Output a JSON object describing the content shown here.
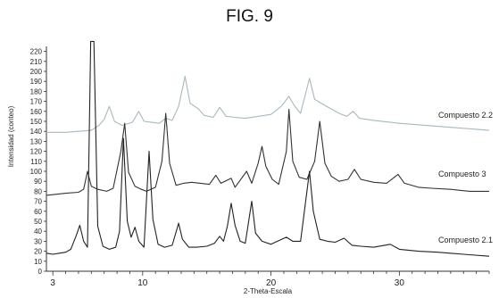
{
  "figure": {
    "title": "FIG. 9"
  },
  "chart_data": {
    "type": "line",
    "xlabel": "2-Theta-Escala",
    "ylabel": "Intensidad (conteo)",
    "xlim": [
      2.5,
      37
    ],
    "ylim": [
      0,
      225
    ],
    "xticks": [
      3,
      10,
      20,
      30
    ],
    "yticks": [
      0,
      10,
      20,
      30,
      40,
      50,
      60,
      70,
      80,
      90,
      100,
      110,
      120,
      130,
      140,
      150,
      160,
      170,
      180,
      190,
      200,
      210,
      220
    ],
    "grid": false,
    "legend": "none",
    "series": [
      {
        "name": "Compuesto 2.2",
        "color": "#a8b8c0",
        "points": [
          [
            2.5,
            139
          ],
          [
            4,
            139
          ],
          [
            5,
            140
          ],
          [
            6,
            141
          ],
          [
            6.6,
            146
          ],
          [
            7,
            152
          ],
          [
            7.4,
            165
          ],
          [
            7.8,
            150
          ],
          [
            8.4,
            146
          ],
          [
            9.2,
            149
          ],
          [
            9.7,
            160
          ],
          [
            10.1,
            150
          ],
          [
            10.7,
            149
          ],
          [
            11.3,
            148
          ],
          [
            11.8,
            153
          ],
          [
            12.3,
            151
          ],
          [
            12.8,
            165
          ],
          [
            13.3,
            195
          ],
          [
            13.7,
            168
          ],
          [
            14.3,
            163
          ],
          [
            14.8,
            156
          ],
          [
            15.5,
            154
          ],
          [
            16,
            164
          ],
          [
            16.5,
            155
          ],
          [
            17.2,
            154
          ],
          [
            18,
            153
          ],
          [
            19,
            155
          ],
          [
            20,
            157
          ],
          [
            20.8,
            165
          ],
          [
            21.4,
            175
          ],
          [
            21.8,
            166
          ],
          [
            22.3,
            158
          ],
          [
            23,
            193
          ],
          [
            23.4,
            172
          ],
          [
            24.2,
            166
          ],
          [
            25.3,
            158
          ],
          [
            25.9,
            155
          ],
          [
            26.4,
            160
          ],
          [
            26.9,
            153
          ],
          [
            28,
            151
          ],
          [
            30,
            148
          ],
          [
            33,
            145
          ],
          [
            35,
            143
          ],
          [
            37,
            141
          ]
        ]
      },
      {
        "name": "Compuesto 3",
        "color": "#333333",
        "points": [
          [
            2.5,
            76
          ],
          [
            4,
            78
          ],
          [
            5,
            79
          ],
          [
            5.4,
            82
          ],
          [
            5.7,
            100
          ],
          [
            6,
            85
          ],
          [
            6.5,
            82
          ],
          [
            7.2,
            80
          ],
          [
            7.7,
            83
          ],
          [
            8.3,
            120
          ],
          [
            8.6,
            148
          ],
          [
            8.9,
            99
          ],
          [
            9.4,
            85
          ],
          [
            9.9,
            82
          ],
          [
            10.3,
            80
          ],
          [
            11,
            84
          ],
          [
            11.5,
            110
          ],
          [
            11.8,
            158
          ],
          [
            12.1,
            108
          ],
          [
            12.6,
            86
          ],
          [
            13.2,
            88
          ],
          [
            13.8,
            89
          ],
          [
            14.5,
            88
          ],
          [
            15.2,
            87
          ],
          [
            15.7,
            96
          ],
          [
            16.1,
            88
          ],
          [
            16.9,
            93
          ],
          [
            17.2,
            84
          ],
          [
            18.1,
            100
          ],
          [
            18.5,
            88
          ],
          [
            19,
            108
          ],
          [
            19.3,
            125
          ],
          [
            19.6,
            105
          ],
          [
            20.1,
            92
          ],
          [
            20.6,
            87
          ],
          [
            21.2,
            120
          ],
          [
            21.4,
            162
          ],
          [
            21.7,
            110
          ],
          [
            22.2,
            94
          ],
          [
            22.8,
            92
          ],
          [
            23.4,
            110
          ],
          [
            23.8,
            150
          ],
          [
            24.2,
            108
          ],
          [
            24.7,
            95
          ],
          [
            25.3,
            90
          ],
          [
            26,
            92
          ],
          [
            26.5,
            102
          ],
          [
            27,
            92
          ],
          [
            28,
            89
          ],
          [
            29,
            88
          ],
          [
            29.9,
            97
          ],
          [
            30.4,
            88
          ],
          [
            31.5,
            84
          ],
          [
            32.5,
            83
          ],
          [
            34,
            82
          ],
          [
            35.5,
            80
          ],
          [
            37,
            80
          ]
        ]
      },
      {
        "name": "Compuesto 2.1",
        "color": "#222222",
        "points": [
          [
            2.5,
            18
          ],
          [
            3,
            17
          ],
          [
            3.5,
            18
          ],
          [
            4,
            19
          ],
          [
            4.4,
            22
          ],
          [
            4.8,
            35
          ],
          [
            5.1,
            46
          ],
          [
            5.4,
            30
          ],
          [
            5.7,
            24
          ],
          [
            5.95,
            230
          ],
          [
            6.2,
            230
          ],
          [
            6.5,
            45
          ],
          [
            6.9,
            25
          ],
          [
            7.4,
            22
          ],
          [
            7.9,
            24
          ],
          [
            8.2,
            40
          ],
          [
            8.5,
            133
          ],
          [
            8.8,
            50
          ],
          [
            9.1,
            34
          ],
          [
            9.4,
            44
          ],
          [
            9.7,
            30
          ],
          [
            10.1,
            24
          ],
          [
            10.5,
            120
          ],
          [
            10.8,
            52
          ],
          [
            11.2,
            27
          ],
          [
            11.7,
            24
          ],
          [
            12.3,
            26
          ],
          [
            12.8,
            48
          ],
          [
            13.1,
            32
          ],
          [
            13.6,
            24
          ],
          [
            14.2,
            24
          ],
          [
            15,
            25
          ],
          [
            15.6,
            28
          ],
          [
            16,
            35
          ],
          [
            16.3,
            30
          ],
          [
            16.6,
            45
          ],
          [
            16.9,
            68
          ],
          [
            17.2,
            46
          ],
          [
            17.6,
            30
          ],
          [
            18,
            28
          ],
          [
            18.5,
            70
          ],
          [
            18.8,
            38
          ],
          [
            19.3,
            30
          ],
          [
            20,
            27
          ],
          [
            20.5,
            30
          ],
          [
            21.2,
            34
          ],
          [
            21.7,
            30
          ],
          [
            22.3,
            30
          ],
          [
            23,
            100
          ],
          [
            23.3,
            60
          ],
          [
            23.8,
            32
          ],
          [
            24.4,
            30
          ],
          [
            25,
            29
          ],
          [
            25.7,
            33
          ],
          [
            26.3,
            26
          ],
          [
            27,
            25
          ],
          [
            28,
            24
          ],
          [
            29.3,
            27
          ],
          [
            30,
            22
          ],
          [
            31.5,
            20
          ],
          [
            33,
            19
          ],
          [
            35,
            17
          ],
          [
            37,
            15
          ]
        ]
      }
    ]
  }
}
